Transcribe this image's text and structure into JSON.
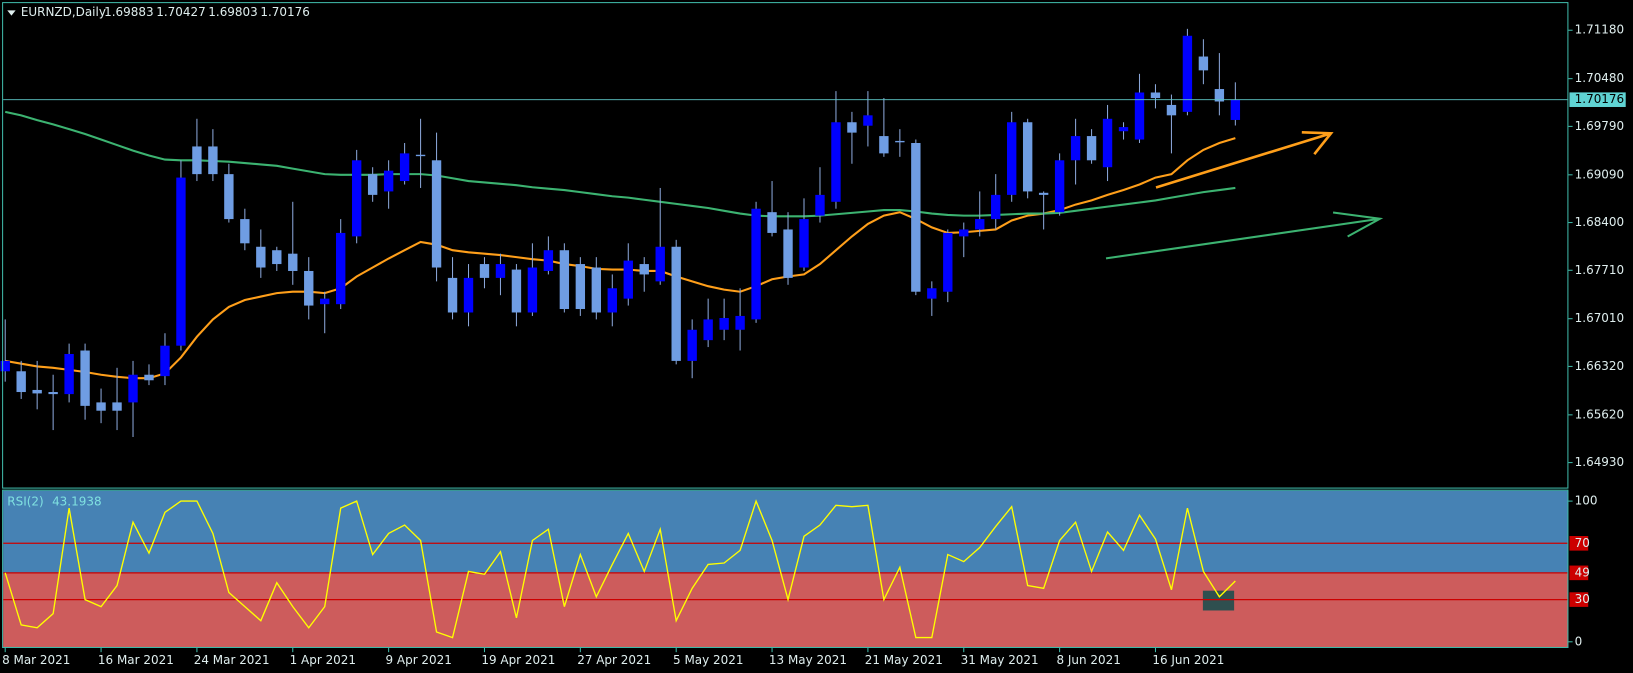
{
  "chart_data": [
    {
      "type": "candlestick",
      "title": "EURNZD,Daily",
      "bull_color": "#0000ff",
      "bear_color": "#6f9de3",
      "wick_color": "#8aa6d8",
      "ylim": [
        1.64569,
        1.71572
      ],
      "yticks": [
        {
          "value": 1.7118,
          "label": "1.71180"
        },
        {
          "value": 1.7048,
          "label": "1.70480"
        },
        {
          "value": 1.6979,
          "label": "1.69790"
        },
        {
          "value": 1.6909,
          "label": "1.69090"
        },
        {
          "value": 1.684,
          "label": "1.68400"
        },
        {
          "value": 1.6771,
          "label": "1.67710"
        },
        {
          "value": 1.6701,
          "label": "1.67010"
        },
        {
          "value": 1.6632,
          "label": "1.66320"
        },
        {
          "value": 1.6562,
          "label": "1.65620"
        },
        {
          "value": 1.6493,
          "label": "1.64930"
        }
      ],
      "categories": [
        "8 Mar 2021",
        null,
        null,
        null,
        null,
        null,
        "16 Mar 2021",
        null,
        null,
        null,
        null,
        null,
        "24 Mar 2021",
        null,
        null,
        null,
        null,
        null,
        "1 Apr 2021",
        null,
        null,
        null,
        null,
        null,
        "9 Apr 2021",
        null,
        null,
        null,
        null,
        null,
        "19 Apr 2021",
        null,
        null,
        null,
        null,
        null,
        "27 Apr 2021",
        null,
        null,
        null,
        null,
        null,
        "5 May 2021",
        null,
        null,
        null,
        null,
        null,
        "13 May 2021",
        null,
        null,
        null,
        null,
        null,
        "21 May 2021",
        null,
        null,
        null,
        null,
        null,
        "31 May 2021",
        null,
        null,
        null,
        null,
        null,
        "8 Jun 2021",
        null,
        null,
        null,
        null,
        null,
        "16 Jun 2021",
        null,
        null,
        null,
        null,
        null
      ],
      "candles": [
        {
          "open": 1.6625,
          "high": 1.67,
          "low": 1.661,
          "close": 1.664
        },
        {
          "open": 1.6625,
          "high": 1.664,
          "low": 1.6585,
          "close": 1.6595
        },
        {
          "open": 1.6598,
          "high": 1.664,
          "low": 1.657,
          "close": 1.6593
        },
        {
          "open": 1.6595,
          "high": 1.662,
          "low": 1.654,
          "close": 1.6592
        },
        {
          "open": 1.6592,
          "high": 1.6665,
          "low": 1.658,
          "close": 1.665
        },
        {
          "open": 1.6655,
          "high": 1.6665,
          "low": 1.6555,
          "close": 1.6575
        },
        {
          "open": 1.658,
          "high": 1.66,
          "low": 1.655,
          "close": 1.6568
        },
        {
          "open": 1.658,
          "high": 1.663,
          "low": 1.654,
          "close": 1.6568
        },
        {
          "open": 1.658,
          "high": 1.664,
          "low": 1.653,
          "close": 1.662
        },
        {
          "open": 1.662,
          "high": 1.6635,
          "low": 1.6605,
          "close": 1.6612
        },
        {
          "open": 1.6618,
          "high": 1.668,
          "low": 1.6605,
          "close": 1.6662
        },
        {
          "open": 1.6662,
          "high": 1.693,
          "low": 1.6655,
          "close": 1.6905
        },
        {
          "open": 1.695,
          "high": 1.699,
          "low": 1.69,
          "close": 1.691
        },
        {
          "open": 1.695,
          "high": 1.6975,
          "low": 1.69,
          "close": 1.691
        },
        {
          "open": 1.691,
          "high": 1.6925,
          "low": 1.684,
          "close": 1.6845
        },
        {
          "open": 1.6845,
          "high": 1.686,
          "low": 1.68,
          "close": 1.681
        },
        {
          "open": 1.6805,
          "high": 1.683,
          "low": 1.676,
          "close": 1.6775
        },
        {
          "open": 1.68,
          "high": 1.6805,
          "low": 1.677,
          "close": 1.678
        },
        {
          "open": 1.6795,
          "high": 1.687,
          "low": 1.675,
          "close": 1.677
        },
        {
          "open": 1.677,
          "high": 1.679,
          "low": 1.67,
          "close": 1.672
        },
        {
          "open": 1.6722,
          "high": 1.674,
          "low": 1.668,
          "close": 1.673
        },
        {
          "open": 1.6722,
          "high": 1.6845,
          "low": 1.6715,
          "close": 1.6825
        },
        {
          "open": 1.682,
          "high": 1.6945,
          "low": 1.681,
          "close": 1.693
        },
        {
          "open": 1.691,
          "high": 1.692,
          "low": 1.687,
          "close": 1.688
        },
        {
          "open": 1.6885,
          "high": 1.693,
          "low": 1.686,
          "close": 1.6915
        },
        {
          "open": 1.69,
          "high": 1.6955,
          "low": 1.6895,
          "close": 1.694
        },
        {
          "open": 1.6938,
          "high": 1.699,
          "low": 1.689,
          "close": 1.6936
        },
        {
          "open": 1.693,
          "high": 1.697,
          "low": 1.6755,
          "close": 1.6775
        },
        {
          "open": 1.676,
          "high": 1.679,
          "low": 1.67,
          "close": 1.671
        },
        {
          "open": 1.671,
          "high": 1.678,
          "low": 1.669,
          "close": 1.676
        },
        {
          "open": 1.678,
          "high": 1.679,
          "low": 1.6745,
          "close": 1.676
        },
        {
          "open": 1.676,
          "high": 1.6795,
          "low": 1.6735,
          "close": 1.678
        },
        {
          "open": 1.6772,
          "high": 1.678,
          "low": 1.669,
          "close": 1.671
        },
        {
          "open": 1.671,
          "high": 1.681,
          "low": 1.6705,
          "close": 1.6775
        },
        {
          "open": 1.677,
          "high": 1.682,
          "low": 1.6765,
          "close": 1.68
        },
        {
          "open": 1.68,
          "high": 1.681,
          "low": 1.671,
          "close": 1.6715
        },
        {
          "open": 1.678,
          "high": 1.679,
          "low": 1.6705,
          "close": 1.6715
        },
        {
          "open": 1.6775,
          "high": 1.679,
          "low": 1.67,
          "close": 1.671
        },
        {
          "open": 1.671,
          "high": 1.6765,
          "low": 1.669,
          "close": 1.6745
        },
        {
          "open": 1.673,
          "high": 1.681,
          "low": 1.672,
          "close": 1.6785
        },
        {
          "open": 1.678,
          "high": 1.679,
          "low": 1.674,
          "close": 1.6765
        },
        {
          "open": 1.6755,
          "high": 1.689,
          "low": 1.675,
          "close": 1.6805
        },
        {
          "open": 1.6805,
          "high": 1.6815,
          "low": 1.6635,
          "close": 1.664
        },
        {
          "open": 1.664,
          "high": 1.67,
          "low": 1.6615,
          "close": 1.6685
        },
        {
          "open": 1.667,
          "high": 1.673,
          "low": 1.666,
          "close": 1.67
        },
        {
          "open": 1.6685,
          "high": 1.673,
          "low": 1.667,
          "close": 1.6702
        },
        {
          "open": 1.6685,
          "high": 1.6745,
          "low": 1.6655,
          "close": 1.6705
        },
        {
          "open": 1.67,
          "high": 1.687,
          "low": 1.6695,
          "close": 1.686
        },
        {
          "open": 1.6855,
          "high": 1.69,
          "low": 1.682,
          "close": 1.6825
        },
        {
          "open": 1.683,
          "high": 1.6855,
          "low": 1.675,
          "close": 1.676
        },
        {
          "open": 1.6775,
          "high": 1.6875,
          "low": 1.677,
          "close": 1.6845
        },
        {
          "open": 1.685,
          "high": 1.692,
          "low": 1.684,
          "close": 1.688
        },
        {
          "open": 1.687,
          "high": 1.703,
          "low": 1.686,
          "close": 1.6985
        },
        {
          "open": 1.6985,
          "high": 1.7,
          "low": 1.6925,
          "close": 1.697
        },
        {
          "open": 1.698,
          "high": 1.703,
          "low": 1.695,
          "close": 1.6995
        },
        {
          "open": 1.6965,
          "high": 1.702,
          "low": 1.6935,
          "close": 1.694
        },
        {
          "open": 1.6958,
          "high": 1.6975,
          "low": 1.6935,
          "close": 1.6956
        },
        {
          "open": 1.6955,
          "high": 1.696,
          "low": 1.6735,
          "close": 1.674
        },
        {
          "open": 1.673,
          "high": 1.6755,
          "low": 1.6705,
          "close": 1.6745
        },
        {
          "open": 1.674,
          "high": 1.683,
          "low": 1.6725,
          "close": 1.6825
        },
        {
          "open": 1.682,
          "high": 1.684,
          "low": 1.679,
          "close": 1.683
        },
        {
          "open": 1.683,
          "high": 1.6885,
          "low": 1.682,
          "close": 1.6845
        },
        {
          "open": 1.6845,
          "high": 1.691,
          "low": 1.683,
          "close": 1.688
        },
        {
          "open": 1.688,
          "high": 1.7,
          "low": 1.687,
          "close": 1.6985
        },
        {
          "open": 1.6985,
          "high": 1.699,
          "low": 1.6875,
          "close": 1.6885
        },
        {
          "open": 1.6883,
          "high": 1.6885,
          "low": 1.683,
          "close": 1.688
        },
        {
          "open": 1.6855,
          "high": 1.694,
          "low": 1.685,
          "close": 1.693
        },
        {
          "open": 1.693,
          "high": 1.699,
          "low": 1.6895,
          "close": 1.6965
        },
        {
          "open": 1.6965,
          "high": 1.6975,
          "low": 1.6925,
          "close": 1.693
        },
        {
          "open": 1.692,
          "high": 1.701,
          "low": 1.69,
          "close": 1.699
        },
        {
          "open": 1.6972,
          "high": 1.6985,
          "low": 1.696,
          "close": 1.6978
        },
        {
          "open": 1.696,
          "high": 1.7055,
          "low": 1.6955,
          "close": 1.7028
        },
        {
          "open": 1.7028,
          "high": 1.704,
          "low": 1.7005,
          "close": 1.702
        },
        {
          "open": 1.701,
          "high": 1.7025,
          "low": 1.694,
          "close": 1.6995
        },
        {
          "open": 1.7,
          "high": 1.712,
          "low": 1.6995,
          "close": 1.711
        },
        {
          "open": 1.708,
          "high": 1.7105,
          "low": 1.704,
          "close": 1.706
        },
        {
          "open": 1.7033,
          "high": 1.7085,
          "low": 1.6995,
          "close": 1.7015
        },
        {
          "open": 1.69883,
          "high": 1.70427,
          "low": 1.69803,
          "close": 1.70176
        }
      ],
      "series": [
        {
          "color": "#ff9f1a",
          "values": [
            1.664,
            1.6636,
            1.6632,
            1.663,
            1.6627,
            1.6624,
            1.662,
            1.6617,
            1.6615,
            1.6615,
            1.6622,
            1.6645,
            1.6675,
            1.67,
            1.6718,
            1.6728,
            1.6733,
            1.6738,
            1.674,
            1.674,
            1.6738,
            1.6745,
            1.6762,
            1.6775,
            1.6788,
            1.68,
            1.6812,
            1.6808,
            1.68,
            1.6797,
            1.6795,
            1.6793,
            1.679,
            1.6787,
            1.6785,
            1.678,
            1.6777,
            1.6773,
            1.6772,
            1.6772,
            1.677,
            1.677,
            1.6762,
            1.6755,
            1.6748,
            1.6743,
            1.674,
            1.6748,
            1.6758,
            1.6762,
            1.6765,
            1.678,
            1.68,
            1.682,
            1.6838,
            1.685,
            1.6855,
            1.6845,
            1.6833,
            1.6825,
            1.6826,
            1.6828,
            1.683,
            1.6843,
            1.685,
            1.6853,
            1.6858,
            1.6866,
            1.6872,
            1.688,
            1.6887,
            1.6895,
            1.6905,
            1.691,
            1.693,
            1.6945,
            1.6955,
            1.6962
          ]
        },
        {
          "color": "#3cb371",
          "values": [
            1.7,
            1.6995,
            1.6988,
            1.6982,
            1.6975,
            1.6968,
            1.696,
            1.6952,
            1.6944,
            1.6937,
            1.6931,
            1.693,
            1.693,
            1.6929,
            1.6928,
            1.6926,
            1.6924,
            1.6922,
            1.6918,
            1.6914,
            1.691,
            1.6909,
            1.6909,
            1.6909,
            1.691,
            1.691,
            1.691,
            1.6908,
            1.6904,
            1.69,
            1.6898,
            1.6896,
            1.6894,
            1.6891,
            1.6889,
            1.6887,
            1.6884,
            1.6881,
            1.6878,
            1.6876,
            1.6873,
            1.687,
            1.6867,
            1.6864,
            1.6861,
            1.6857,
            1.6853,
            1.685,
            1.6849,
            1.6849,
            1.6849,
            1.685,
            1.6852,
            1.6854,
            1.6856,
            1.6858,
            1.6858,
            1.6856,
            1.6853,
            1.6851,
            1.685,
            1.685,
            1.6851,
            1.6852,
            1.6853,
            1.6853,
            1.6854,
            1.6857,
            1.686,
            1.6863,
            1.6866,
            1.6869,
            1.6872,
            1.6876,
            1.688,
            1.6884,
            1.6887,
            1.689
          ]
        }
      ]
    },
    {
      "type": "line",
      "title": "RSI(2)",
      "ylim": [
        -4.4,
        107.4
      ],
      "yticks": [
        0,
        100
      ],
      "levels": [
        70,
        49,
        30
      ],
      "level_color": "#cc0000",
      "zone_colors": {
        "above": "#4682b4",
        "below": "#cd5c5c"
      },
      "series": [
        {
          "color": "#ffff00",
          "values": [
            49,
            12,
            10,
            20,
            95,
            30,
            25,
            40,
            85,
            63,
            92,
            100,
            100,
            77,
            35,
            25,
            15,
            42,
            25,
            10,
            25,
            95,
            100,
            62,
            77,
            83,
            72,
            7,
            3,
            50,
            48,
            64,
            17,
            72,
            80,
            25,
            62,
            32,
            55,
            77,
            50,
            80,
            15,
            38,
            55,
            56,
            65,
            100,
            72,
            30,
            75,
            83,
            97,
            96,
            97,
            30,
            53,
            3,
            3,
            62,
            57,
            67,
            82,
            96,
            40,
            38,
            72,
            85,
            50,
            78,
            65,
            90,
            73,
            37,
            95,
            50,
            32,
            43.1938
          ]
        }
      ]
    }
  ]
}
